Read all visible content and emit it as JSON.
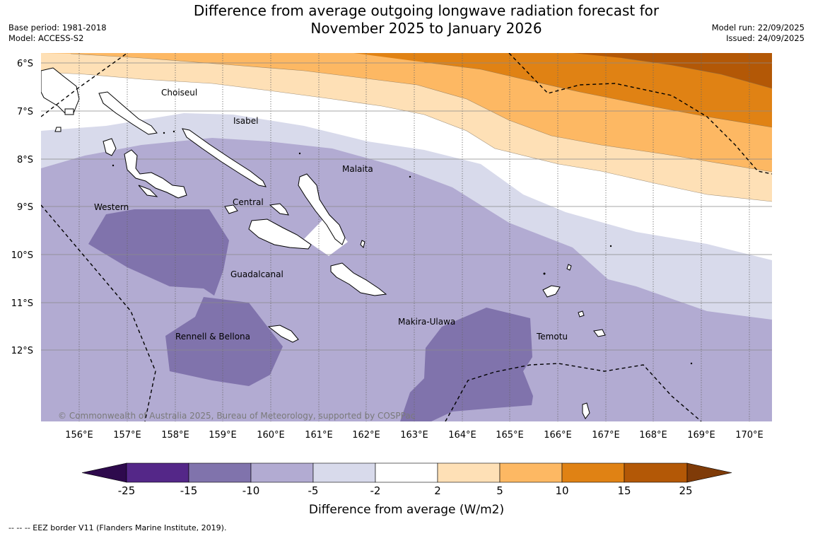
{
  "header": {
    "title_line1": "Difference from average outgoing longwave radiation forecast for",
    "title_line2": "November 2025 to January 2026",
    "base_period": "Base period: 1981-2018",
    "model": "Model: ACCESS-S2",
    "model_run": "Model run: 22/09/2025",
    "issued": "Issued: 24/09/2025"
  },
  "map": {
    "lat_labels": [
      "6°S",
      "7°S",
      "8°S",
      "9°S",
      "10°S",
      "11°S",
      "12°S"
    ],
    "lon_labels": [
      "156°E",
      "157°E",
      "158°E",
      "159°E",
      "160°E",
      "161°E",
      "162°E",
      "163°E",
      "164°E",
      "165°E",
      "166°E",
      "167°E",
      "168°E",
      "169°E",
      "170°E"
    ],
    "regions": {
      "choiseul": "Choiseul",
      "isabel": "Isabel",
      "malaita": "Malaita",
      "western": "Western",
      "central": "Central",
      "guadalcanal": "Guadalcanal",
      "makira_ulawa": "Makira-Ulawa",
      "rennell_bellona": "Rennell & Bellona",
      "temotu": "Temotu"
    },
    "copyright": "© Commonwealth of Australia 2025, Bureau of Meteorology, supported by COSPPac"
  },
  "colorbar": {
    "ticks": [
      "-25",
      "-15",
      "-10",
      "-5",
      "-2",
      "2",
      "5",
      "10",
      "15",
      "25"
    ],
    "label": "Difference from average (W/m2)",
    "colors": {
      "below_min": "#2e0a4d",
      "b1": "#542788",
      "b2": "#8073ac",
      "b3": "#b2abd2",
      "b4": "#d8daeb",
      "b5": "#ffffff",
      "b6": "#fee0b6",
      "b7": "#fdb863",
      "b8": "#e08214",
      "b9": "#b35806",
      "above_max": "#7f3b08"
    }
  },
  "footer": {
    "legend": "--  --  -- EEZ border V11 (Flanders Marine Institute, 2019)."
  }
}
